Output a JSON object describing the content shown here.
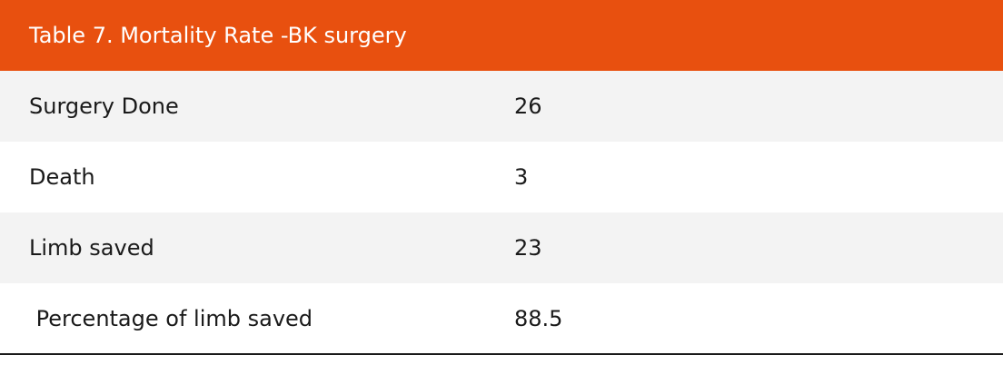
{
  "table": {
    "title": "Table 7. Mortality Rate -BK surgery",
    "rows": [
      [
        "Surgery Done",
        26
      ],
      [
        "Death",
        3
      ],
      [
        "Limb saved",
        23
      ],
      [
        " Percentage of limb saved",
        88.5
      ]
    ]
  }
}
